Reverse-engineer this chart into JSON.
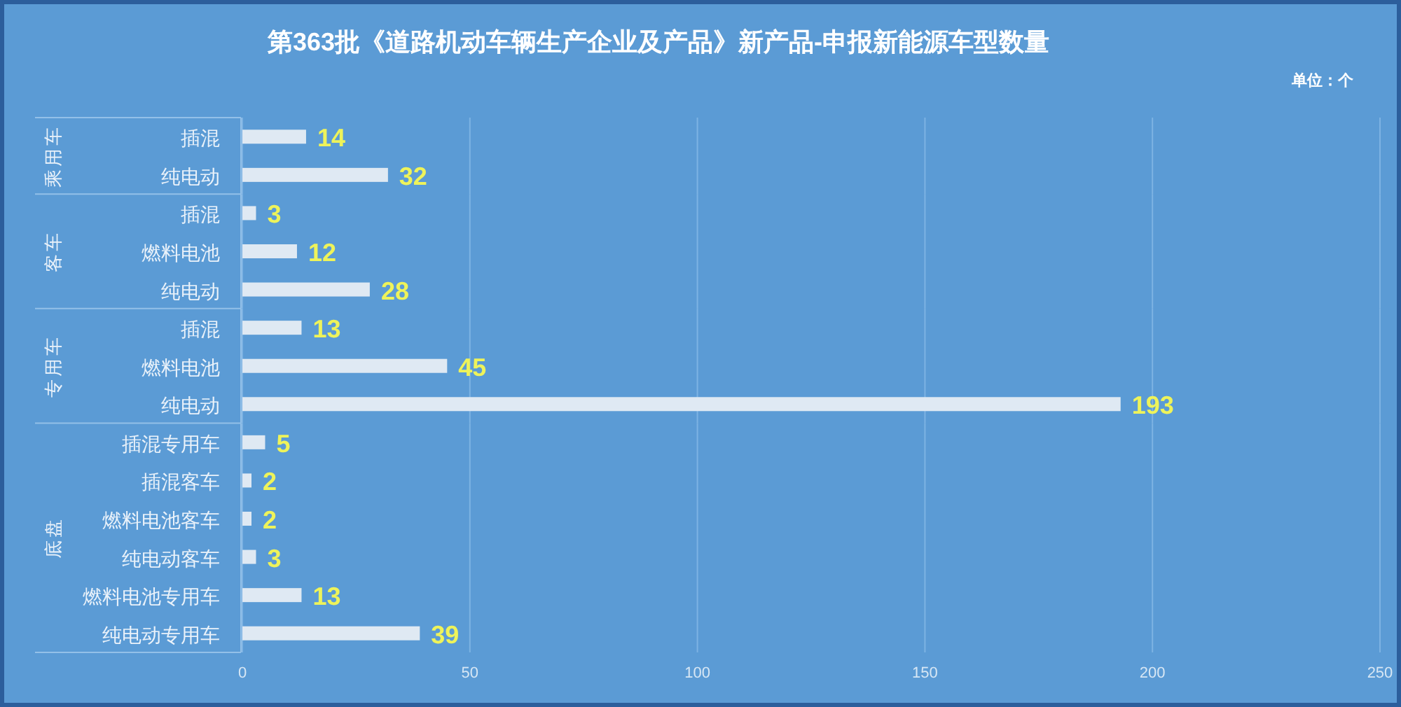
{
  "chart_data": [
    {
      "type": "bar",
      "orientation": "horizontal",
      "title": "第363批《道路机动车辆生产企业及产品》新产品-申报新能源车型数量",
      "annotations": [
        "单位：个"
      ],
      "ylabel": "乘用车",
      "categories": [
        "插混",
        "纯电动"
      ],
      "values": [
        14,
        32
      ],
      "color": "#dfe9f3",
      "xlim": [
        0,
        250
      ],
      "xticks": [
        0,
        50,
        100,
        150,
        200,
        250
      ],
      "grid": "x",
      "data_labels": true,
      "tick_labels": "y"
    },
    {
      "type": "bar",
      "orientation": "horizontal",
      "ylabel": "客车",
      "categories": [
        "插混",
        "燃料电池",
        "纯电动"
      ],
      "values": [
        3,
        12,
        28
      ],
      "color": "#dfe9f3",
      "xlim": [
        0,
        250
      ],
      "xticks": [
        0,
        50,
        100,
        150,
        200,
        250
      ],
      "grid": "x",
      "data_labels": true,
      "tick_labels": "y"
    },
    {
      "type": "bar",
      "orientation": "horizontal",
      "ylabel": "专用车",
      "categories": [
        "插混",
        "燃料电池",
        "纯电动"
      ],
      "values": [
        13,
        45,
        193
      ],
      "color": "#dfe9f3",
      "xlim": [
        0,
        250
      ],
      "xticks": [
        0,
        50,
        100,
        150,
        200,
        250
      ],
      "grid": "x",
      "data_labels": true,
      "tick_labels": "y"
    },
    {
      "type": "bar",
      "orientation": "horizontal",
      "ylabel": "底盘",
      "categories": [
        "插混专用车",
        "插混客车",
        "燃料电池客车",
        "纯电动客车",
        "燃料电池专用车",
        "纯电动专用车"
      ],
      "values": [
        5,
        2,
        2,
        3,
        13,
        39
      ],
      "color": "#dfe9f3",
      "xlim": [
        0,
        250
      ],
      "xticks": [
        0,
        50,
        100,
        150,
        200,
        250
      ],
      "grid": "x",
      "data_labels": true
    }
  ]
}
